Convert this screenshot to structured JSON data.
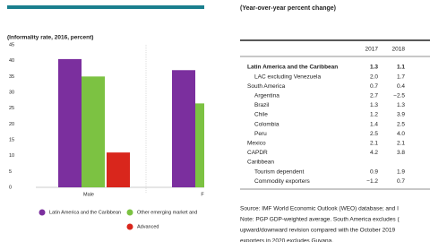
{
  "chart_data": {
    "type": "bar",
    "subtitle": "(Informality rate, 2016, percent)",
    "categories": [
      "Male",
      "F"
    ],
    "series": [
      {
        "name": "Latin America and the Caribbean",
        "color": "#7b2f9e",
        "values": [
          40.5,
          37
        ]
      },
      {
        "name": "Other emerging market and",
        "color": "#7cc242",
        "values": [
          35,
          26.5
        ]
      },
      {
        "name": "Advanced",
        "color": "#d9261c",
        "values": [
          11,
          null
        ]
      }
    ],
    "ylim": [
      0,
      45
    ],
    "yticks": [
      0,
      5,
      10,
      15,
      20,
      25,
      30,
      35,
      40,
      45
    ]
  },
  "table": {
    "title": "(Year-over-year percent change)",
    "columns": [
      "2017",
      "2018"
    ],
    "rows": [
      [
        "Latin America and the Caribbean",
        "1.3",
        "1.1"
      ],
      [
        "LAC excluding Venezuela",
        "2.0",
        "1.7"
      ],
      [
        "South America",
        "0.7",
        "0.4"
      ],
      [
        "Argentina",
        "2.7",
        "−2.5"
      ],
      [
        "Brazil",
        "1.3",
        "1.3"
      ],
      [
        "Chile",
        "1.2",
        "3.9"
      ],
      [
        "Colombia",
        "1.4",
        "2.5"
      ],
      [
        "Peru",
        "2.5",
        "4.0"
      ],
      [
        "Mexico",
        "2.1",
        "2.1"
      ],
      [
        "CAPDR",
        "4.2",
        "3.8"
      ],
      [
        "Caribbean",
        "",
        ""
      ],
      [
        "Tourism dependent",
        "0.9",
        "1.9"
      ],
      [
        "Commodity exporters",
        "−1.2",
        "0.7"
      ]
    ],
    "notes": [
      "Source: IMF World Economic Outlook (WEO) database; and I",
      "Note: PGP GDP-weighted average. South America excludes (",
      "upward/downward revision compared with the October 2019",
      "exporters in 2020 excludes Guyana."
    ]
  }
}
